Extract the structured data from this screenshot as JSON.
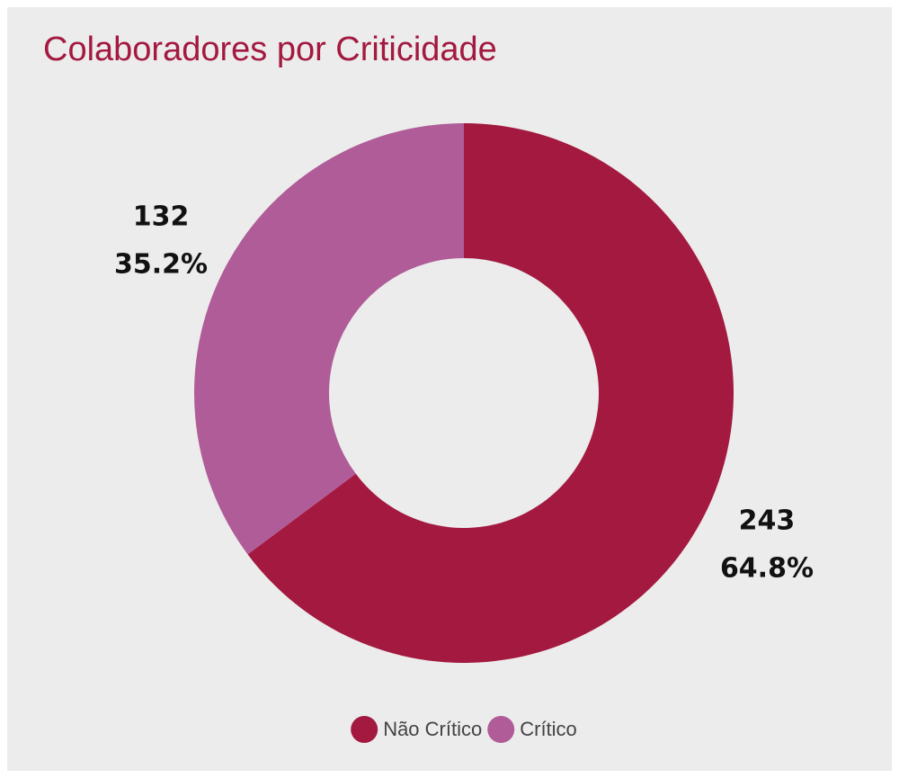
{
  "chart_data": {
    "type": "donut",
    "title": "Colaboradores por Criticidade",
    "categories": [
      "Não Crítico",
      "Crítico"
    ],
    "values": [
      243,
      132
    ],
    "percent_labels": [
      "64.8%",
      "35.2%"
    ],
    "colors": [
      "#a3193f",
      "#b05c98"
    ],
    "legend": "bottom"
  }
}
